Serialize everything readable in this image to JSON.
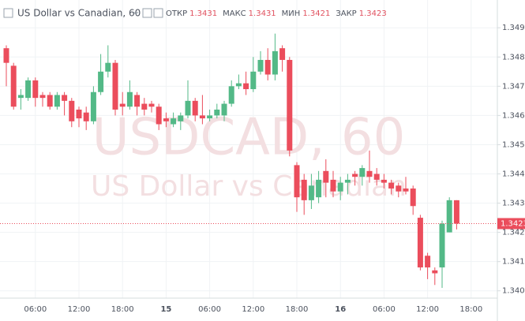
{
  "chart_data": {
    "type": "candlestick",
    "title": "US Dollar vs Canadian, 60",
    "watermark": [
      "USDCAD, 60",
      "US Dollar vs Canadian"
    ],
    "legend_labels": [
      "ОТКР",
      "МАКС",
      "МИН",
      "ЗАКР"
    ],
    "up_color": "#53b987",
    "down_color": "#eb4d5c",
    "grid": true,
    "categories": [
      null,
      null,
      null,
      null,
      "06:00",
      null,
      null,
      null,
      null,
      null,
      "12:00",
      null,
      null,
      null,
      null,
      null,
      "18:00",
      null,
      null,
      null,
      null,
      null,
      "15",
      null,
      null,
      null,
      null,
      null,
      "06:00",
      null,
      null,
      null,
      null,
      null,
      "12:00",
      null,
      null,
      null,
      null,
      null,
      "18:00",
      null,
      null,
      null,
      null,
      null,
      "16",
      null,
      null,
      null,
      null,
      null,
      "06:00",
      null,
      null,
      null,
      null,
      null,
      "12:00",
      null,
      null,
      null,
      null,
      null,
      "18:00"
    ],
    "open": [
      1.3483,
      1.3477,
      1.3466,
      1.3466,
      1.3472,
      1.3467,
      1.3467,
      1.3463,
      1.3467,
      1.3465,
      1.3462,
      1.3461,
      1.3458,
      1.3468,
      1.3475,
      1.3478,
      1.3464,
      1.3463,
      1.3467,
      1.3464,
      1.3464,
      1.3463,
      1.3459,
      1.3457,
      1.3458,
      1.346,
      1.3465,
      1.346,
      1.3459,
      1.346,
      1.346,
      1.3464,
      1.347,
      1.3471,
      1.3469,
      1.3475,
      1.3479,
      1.3474,
      1.3483,
      1.3479,
      1.3443,
      1.3438,
      1.3431,
      1.3432,
      1.3441,
      1.3438,
      1.3434,
      1.3437,
      1.344,
      1.3439,
      1.3441,
      1.344,
      1.3438,
      1.3437,
      1.3436,
      1.3435,
      1.3435,
      1.3425,
      1.3412,
      1.3407,
      1.3408,
      1.342,
      1.3431,
      null,
      null
    ],
    "high": [
      1.3484,
      1.3478,
      1.3469,
      1.3473,
      1.3473,
      1.3468,
      1.3468,
      1.3468,
      1.3468,
      1.3466,
      1.3463,
      1.3463,
      1.347,
      1.3481,
      1.3484,
      1.3479,
      1.3468,
      1.3472,
      1.3468,
      1.3466,
      1.3465,
      1.3464,
      1.3461,
      1.3461,
      1.3461,
      1.3472,
      1.3466,
      1.3467,
      1.3462,
      1.3464,
      1.3465,
      1.3472,
      1.3474,
      1.3475,
      1.348,
      1.3482,
      1.3483,
      1.3488,
      1.3484,
      1.348,
      1.3444,
      1.344,
      1.344,
      1.3441,
      1.3445,
      1.3441,
      1.3439,
      1.344,
      1.3441,
      1.3443,
      1.3448,
      1.3442,
      1.344,
      1.3438,
      1.3437,
      1.3439,
      1.3436,
      1.3426,
      1.3413,
      1.3408,
      1.3424,
      1.3432,
      1.3431,
      null,
      null
    ],
    "low": [
      1.347,
      1.3462,
      1.3462,
      1.3465,
      1.3463,
      1.3463,
      1.3462,
      1.3462,
      1.346,
      1.3456,
      1.3456,
      1.3455,
      1.3457,
      1.3467,
      1.3473,
      1.346,
      1.346,
      1.3462,
      1.346,
      1.346,
      1.3461,
      1.3455,
      1.3456,
      1.3456,
      1.3455,
      1.3459,
      1.3458,
      1.3457,
      1.3458,
      1.3459,
      1.3458,
      1.3463,
      1.3469,
      1.3467,
      1.3468,
      1.3474,
      1.3472,
      1.3472,
      1.3475,
      1.3446,
      1.3427,
      1.3426,
      1.3428,
      1.343,
      1.3432,
      1.3432,
      1.3431,
      1.3433,
      1.3436,
      1.3436,
      1.3437,
      1.3436,
      1.3435,
      1.3433,
      1.3432,
      1.3433,
      1.3426,
      1.3407,
      1.3404,
      1.3402,
      1.3401,
      1.342,
      1.3421,
      null,
      null
    ],
    "close": [
      1.3478,
      1.3463,
      1.3467,
      1.3472,
      1.3466,
      1.3466,
      1.3463,
      1.3467,
      1.3465,
      1.3458,
      1.3459,
      1.3458,
      1.3468,
      1.3475,
      1.3478,
      1.3462,
      1.3463,
      1.3468,
      1.3463,
      1.3462,
      1.3463,
      1.3457,
      1.3458,
      1.3459,
      1.346,
      1.3465,
      1.346,
      1.3459,
      1.346,
      1.3462,
      1.3464,
      1.347,
      1.3471,
      1.3469,
      1.3475,
      1.3479,
      1.3474,
      1.3482,
      1.3479,
      1.3448,
      1.3432,
      1.3431,
      1.3436,
      1.3438,
      1.3437,
      1.3434,
      1.3437,
      1.3438,
      1.3439,
      1.3442,
      1.3439,
      1.3438,
      1.3437,
      1.3435,
      1.3434,
      1.3434,
      1.3429,
      1.3408,
      1.3408,
      1.3406,
      1.3423,
      1.3431,
      1.3423,
      null,
      null
    ],
    "ylim": [
      1.33975,
      1.34995
    ],
    "yticks": [
      {
        "value": 1.34,
        "label": "1.3400"
      },
      {
        "value": 1.341,
        "label": "1.3410"
      },
      {
        "value": 1.342,
        "label": "1.3420"
      },
      {
        "value": 1.343,
        "label": "1.3430"
      },
      {
        "value": 1.344,
        "label": "1.3440"
      },
      {
        "value": 1.345,
        "label": "1.3450"
      },
      {
        "value": 1.346,
        "label": "1.3460"
      },
      {
        "value": 1.347,
        "label": "1.3470"
      },
      {
        "value": 1.348,
        "label": "1.3480"
      },
      {
        "value": 1.349,
        "label": "1.3490"
      }
    ]
  }
}
